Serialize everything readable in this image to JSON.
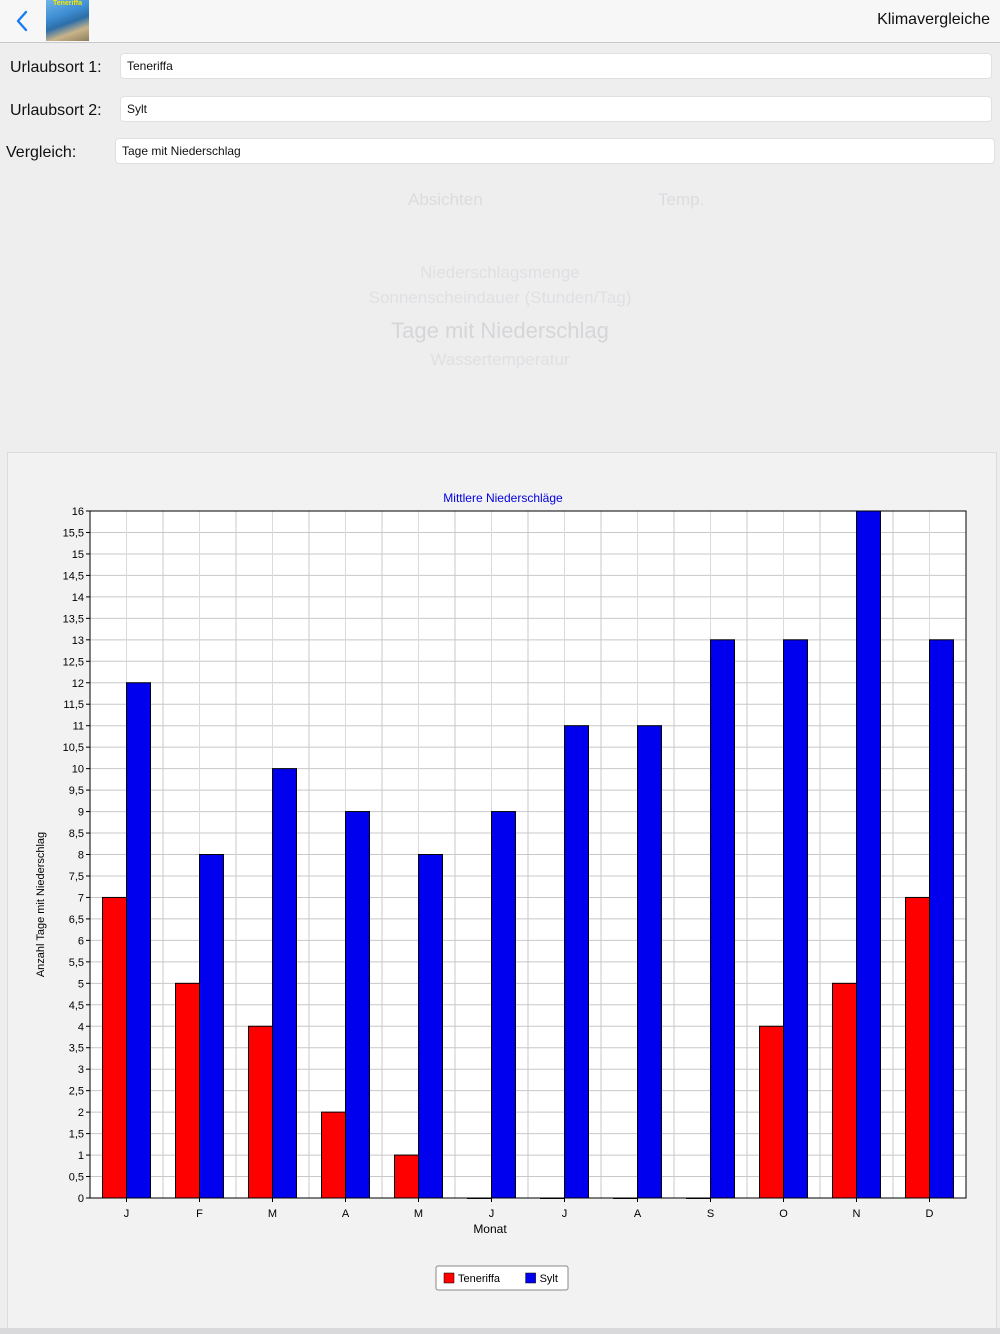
{
  "navbar": {
    "title": "Klimavergleiche",
    "thumb_caption": "Teneriffa",
    "back_icon": "chevron-left-icon",
    "accent_color": "#1a7cf5"
  },
  "form": {
    "ort1": {
      "label": "Urlaubsort 1:",
      "value": "Teneriffa"
    },
    "ort2": {
      "label": "Urlaubsort 2:",
      "value": "Sylt"
    },
    "vergleich": {
      "label": "Vergleich:",
      "value": "Tage mit Niederschlag"
    }
  },
  "picker": {
    "tabs": [
      "Absichten",
      "Temp."
    ],
    "options": [
      "",
      "Niederschlagsmenge",
      "Sonnenscheindauer (Stunden/Tag)",
      "Tage mit Niederschlag",
      "Wassertemperatur"
    ],
    "selected_index": 3
  },
  "chart_data": {
    "type": "bar",
    "title": "Mittlere Niederschläge",
    "xlabel": "Monat",
    "ylabel": "Anzahl Tage mit Niederschlag",
    "categories": [
      "J",
      "F",
      "M",
      "A",
      "M",
      "J",
      "J",
      "A",
      "S",
      "O",
      "N",
      "D"
    ],
    "series": [
      {
        "name": "Teneriffa",
        "color": "#ff0000",
        "values": [
          7,
          5,
          4,
          2,
          1,
          0,
          0,
          0,
          0,
          4,
          5,
          7
        ]
      },
      {
        "name": "Sylt",
        "color": "#0000ee",
        "values": [
          12,
          8,
          10,
          9,
          8,
          9,
          11,
          11,
          13,
          13,
          16,
          13
        ]
      }
    ],
    "ylim": [
      0,
      16
    ],
    "ytick_step": 0.5,
    "grid": true,
    "legend": "bottom-center"
  }
}
